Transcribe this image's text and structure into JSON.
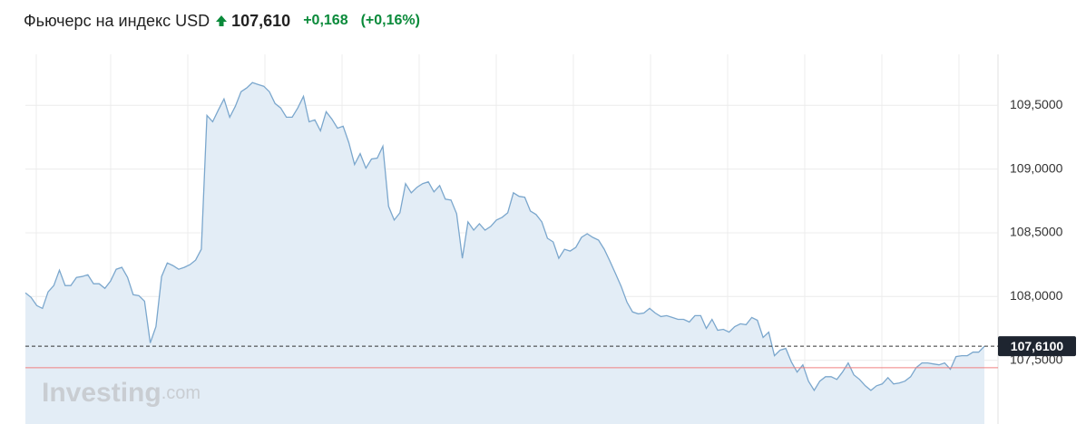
{
  "chart_data": {
    "type": "area",
    "title": "Фьючерс на индекс USD",
    "price": "107,610",
    "change": "+0,168",
    "change_percent": "(+0,16%)",
    "watermark": [
      "Investing",
      ".com"
    ],
    "color": "#7ba7cd",
    "fill": "#e3edf6",
    "ylim": [
      107.0,
      109.9
    ],
    "yticks": [
      {
        "value": 107.5,
        "label": "107,5000"
      },
      {
        "value": 108.0,
        "label": "108,0000"
      },
      {
        "value": 108.5,
        "label": "108,5000"
      },
      {
        "value": 109.0,
        "label": "109,0000"
      },
      {
        "value": 109.5,
        "label": "109,5000"
      }
    ],
    "grid": true,
    "current": {
      "value": 107.61,
      "label": "107,6100"
    },
    "reference_line": 107.442,
    "values": [
      108.029,
      107.993,
      107.929,
      107.907,
      108.036,
      108.086,
      108.207,
      108.086,
      108.086,
      108.15,
      108.157,
      108.171,
      108.1,
      108.1,
      108.064,
      108.121,
      108.214,
      108.229,
      108.15,
      108.014,
      108.007,
      107.964,
      107.636,
      107.764,
      108.157,
      108.264,
      108.243,
      108.214,
      108.229,
      108.25,
      108.286,
      108.371,
      109.421,
      109.371,
      109.464,
      109.55,
      109.407,
      109.493,
      109.607,
      109.636,
      109.679,
      109.664,
      109.65,
      109.607,
      109.514,
      109.479,
      109.407,
      109.407,
      109.479,
      109.571,
      109.371,
      109.386,
      109.3,
      109.45,
      109.393,
      109.321,
      109.336,
      109.207,
      109.036,
      109.121,
      109.007,
      109.079,
      109.086,
      109.179,
      108.707,
      108.6,
      108.657,
      108.886,
      108.814,
      108.857,
      108.886,
      108.9,
      108.821,
      108.871,
      108.764,
      108.757,
      108.65,
      108.3,
      108.586,
      108.521,
      108.571,
      108.521,
      108.55,
      108.6,
      108.621,
      108.657,
      108.814,
      108.786,
      108.779,
      108.671,
      108.643,
      108.586,
      108.457,
      108.429,
      108.3,
      108.371,
      108.357,
      108.386,
      108.464,
      108.493,
      108.464,
      108.443,
      108.371,
      108.279,
      108.179,
      108.079,
      107.957,
      107.879,
      107.864,
      107.871,
      107.907,
      107.871,
      107.843,
      107.85,
      107.836,
      107.821,
      107.821,
      107.8,
      107.85,
      107.85,
      107.75,
      107.821,
      107.736,
      107.743,
      107.721,
      107.764,
      107.786,
      107.779,
      107.836,
      107.814,
      107.679,
      107.721,
      107.536,
      107.579,
      107.593,
      107.486,
      107.407,
      107.464,
      107.336,
      107.264,
      107.336,
      107.371,
      107.371,
      107.35,
      107.407,
      107.479,
      107.386,
      107.35,
      107.3,
      107.264,
      107.3,
      107.314,
      107.364,
      107.314,
      107.321,
      107.336,
      107.371,
      107.443,
      107.479,
      107.479,
      107.471,
      107.464,
      107.479,
      107.429,
      107.529,
      107.536,
      107.536,
      107.564,
      107.564,
      107.61
    ]
  }
}
